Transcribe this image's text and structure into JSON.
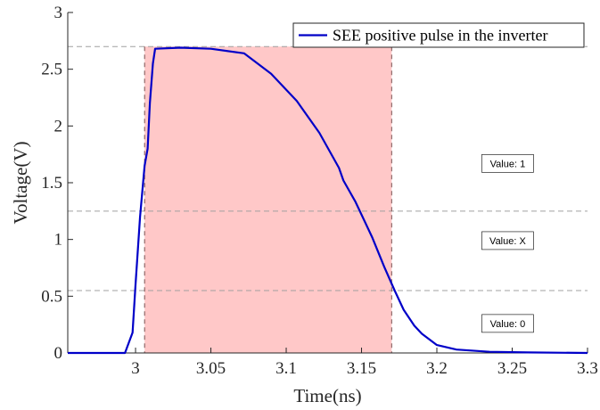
{
  "chart_data": {
    "type": "line",
    "title": "",
    "xlabel": "Time(ns)",
    "ylabel": "Voltage(V)",
    "xlim": [
      2.955,
      3.3
    ],
    "ylim": [
      0,
      3
    ],
    "x_ticks": [
      3,
      3.05,
      3.1,
      3.15,
      3.2,
      3.25,
      3.3
    ],
    "x_tick_labels": [
      "3",
      "3.05",
      "3.1",
      "3.15",
      "3.2",
      "3.25",
      "3.3"
    ],
    "y_ticks": [
      0,
      0.5,
      1,
      1.5,
      2,
      2.5,
      3
    ],
    "y_tick_labels": [
      "0",
      "0.5",
      "1",
      "1.5",
      "2",
      "2.5",
      "3"
    ],
    "grid": false,
    "legend_position": "top-right",
    "series": [
      {
        "name": "SEE positive pulse in the inverter",
        "color": "#0000c8",
        "points": [
          [
            2.955,
            0
          ],
          [
            2.993,
            0
          ],
          [
            2.998,
            0.18
          ],
          [
            3.0,
            0.6
          ],
          [
            3.003,
            1.2
          ],
          [
            3.006,
            1.65
          ],
          [
            3.008,
            1.8
          ],
          [
            3.0095,
            2.2
          ],
          [
            3.0115,
            2.55
          ],
          [
            3.013,
            2.68
          ],
          [
            3.03,
            2.69
          ],
          [
            3.05,
            2.68
          ],
          [
            3.072,
            2.64
          ],
          [
            3.09,
            2.46
          ],
          [
            3.107,
            2.22
          ],
          [
            3.122,
            1.94
          ],
          [
            3.135,
            1.63
          ],
          [
            3.138,
            1.52
          ],
          [
            3.146,
            1.33
          ],
          [
            3.157,
            1.02
          ],
          [
            3.165,
            0.76
          ],
          [
            3.172,
            0.55
          ],
          [
            3.178,
            0.38
          ],
          [
            3.185,
            0.24
          ],
          [
            3.19,
            0.17
          ],
          [
            3.2,
            0.07
          ],
          [
            3.213,
            0.03
          ],
          [
            3.235,
            0.01
          ],
          [
            3.26,
            0.005
          ],
          [
            3.3,
            0
          ]
        ]
      }
    ],
    "reference_lines": {
      "horizontal": [
        2.7,
        1.25,
        0.55
      ],
      "vertical": [
        3.006,
        3.17
      ],
      "style": "dashed",
      "color": "#a0a0a0"
    },
    "shaded_region": {
      "x": [
        3.006,
        3.17
      ],
      "y": [
        0,
        2.7
      ],
      "color": "#ffc8c8"
    },
    "annotations": [
      {
        "text": "Value: 1",
        "x": 3.247,
        "y": 1.67
      },
      {
        "text": "Value: X",
        "x": 3.247,
        "y": 0.99
      },
      {
        "text": "Value: 0",
        "x": 3.247,
        "y": 0.26
      }
    ]
  }
}
